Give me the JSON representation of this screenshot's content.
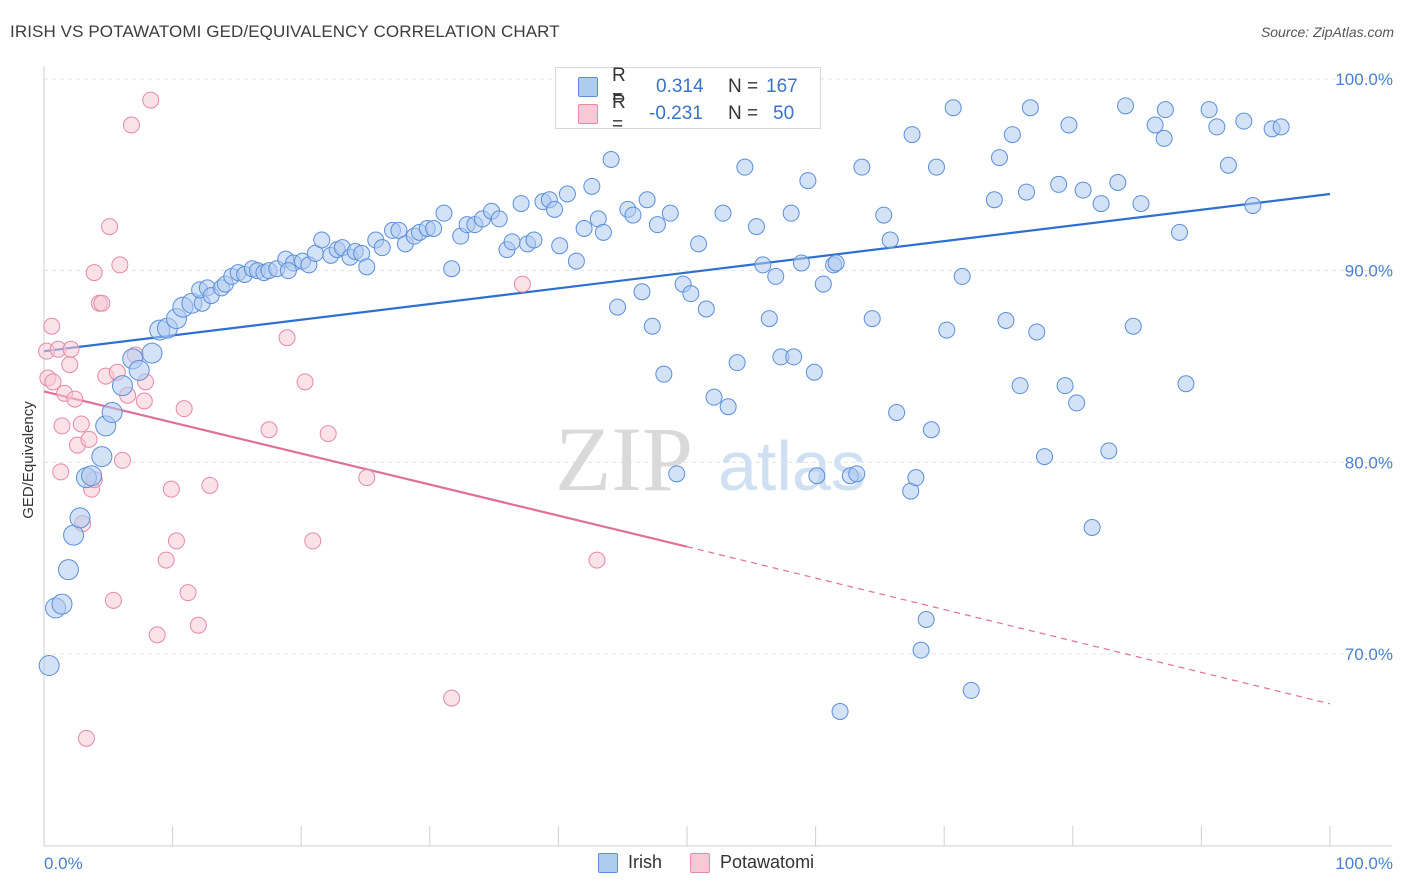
{
  "title": "IRISH VS POTAWATOMI GED/EQUIVALENCY CORRELATION CHART",
  "source": "Source: ZipAtlas.com",
  "watermark": {
    "zip": "ZIP",
    "atlas": "atlas"
  },
  "legend": {
    "rows": [
      {
        "r_label": "R =",
        "r_value": "0.314",
        "n_label": "N =",
        "n_value": "167",
        "fill": "#aecbf0",
        "stroke": "#5b8fd9"
      },
      {
        "r_label": "R =",
        "r_value": "-0.231",
        "n_label": "N =",
        "n_value": "50",
        "fill": "#f8c8d6",
        "stroke": "#e58aa6"
      }
    ]
  },
  "bottom_legend": [
    {
      "name": "Irish",
      "fill": "#aecbf0",
      "stroke": "#5b8fd9"
    },
    {
      "name": "Potawatomi",
      "fill": "#f8c8d6",
      "stroke": "#e58aa6"
    }
  ],
  "chart_data": {
    "type": "scatter",
    "title": "IRISH VS POTAWATOMI GED/EQUIVALENCY CORRELATION CHART",
    "xlabel": "",
    "ylabel": "GED/Equivalency",
    "xlim": [
      0,
      100
    ],
    "ylim": [
      59,
      101
    ],
    "x_tick_labels": [
      "0.0%",
      "100.0%"
    ],
    "y_ticks": [
      70,
      80,
      90,
      100
    ],
    "y_tick_labels": [
      "70.0%",
      "80.0%",
      "90.0%",
      "100.0%"
    ],
    "grid": true,
    "legend_position": "top-center",
    "colors": {
      "irish_fill": "#aecbf0",
      "irish_stroke": "#5b8fd9",
      "irish_line": "#2f6fce",
      "pota_fill": "#f8c8d6",
      "pota_stroke": "#e58aa6",
      "pota_line": "#e0709a",
      "tick_text": "#4a7fd0"
    },
    "series": [
      {
        "name": "Irish",
        "trend": {
          "x": [
            0,
            100
          ],
          "y": [
            85.8,
            94.0
          ],
          "style": "solid"
        },
        "points": [
          [
            0.4,
            69.4
          ],
          [
            0.9,
            72.4
          ],
          [
            1.4,
            72.6
          ],
          [
            1.9,
            74.4
          ],
          [
            2.3,
            76.2
          ],
          [
            2.8,
            77.1
          ],
          [
            3.3,
            79.2
          ],
          [
            3.7,
            79.3
          ],
          [
            4.5,
            80.3
          ],
          [
            4.8,
            81.9
          ],
          [
            5.3,
            82.6
          ],
          [
            6.1,
            84.0
          ],
          [
            6.9,
            85.4
          ],
          [
            7.4,
            84.8
          ],
          [
            8.4,
            85.7
          ],
          [
            9.0,
            86.9
          ],
          [
            9.6,
            87.0
          ],
          [
            10.3,
            87.5
          ],
          [
            10.8,
            88.1
          ],
          [
            11.5,
            88.3
          ],
          [
            12.3,
            88.3
          ],
          [
            12.1,
            89.0
          ],
          [
            12.7,
            89.1
          ],
          [
            13.0,
            88.7
          ],
          [
            13.8,
            89.1
          ],
          [
            14.1,
            89.3
          ],
          [
            14.6,
            89.7
          ],
          [
            15.1,
            89.9
          ],
          [
            15.6,
            89.8
          ],
          [
            16.2,
            90.1
          ],
          [
            16.6,
            90.0
          ],
          [
            17.1,
            89.9
          ],
          [
            17.5,
            90.0
          ],
          [
            18.1,
            90.1
          ],
          [
            18.8,
            90.6
          ],
          [
            19.4,
            90.4
          ],
          [
            19.0,
            90.0
          ],
          [
            20.1,
            90.5
          ],
          [
            20.6,
            90.3
          ],
          [
            21.1,
            90.9
          ],
          [
            21.6,
            91.6
          ],
          [
            22.3,
            90.8
          ],
          [
            22.8,
            91.1
          ],
          [
            23.2,
            91.2
          ],
          [
            23.8,
            90.7
          ],
          [
            24.2,
            91.0
          ],
          [
            24.7,
            90.9
          ],
          [
            25.1,
            90.2
          ],
          [
            25.8,
            91.6
          ],
          [
            26.3,
            91.2
          ],
          [
            27.1,
            92.1
          ],
          [
            27.6,
            92.1
          ],
          [
            28.1,
            91.4
          ],
          [
            28.8,
            91.8
          ],
          [
            29.2,
            92.0
          ],
          [
            29.8,
            92.2
          ],
          [
            30.3,
            92.2
          ],
          [
            31.1,
            93.0
          ],
          [
            31.7,
            90.1
          ],
          [
            32.4,
            91.8
          ],
          [
            32.9,
            92.4
          ],
          [
            33.5,
            92.4
          ],
          [
            34.1,
            92.7
          ],
          [
            34.8,
            93.1
          ],
          [
            35.4,
            92.7
          ],
          [
            36.0,
            91.1
          ],
          [
            36.4,
            91.5
          ],
          [
            37.1,
            93.5
          ],
          [
            37.6,
            91.4
          ],
          [
            38.1,
            91.6
          ],
          [
            38.8,
            93.6
          ],
          [
            39.3,
            93.7
          ],
          [
            39.7,
            93.2
          ],
          [
            40.1,
            91.3
          ],
          [
            40.7,
            94.0
          ],
          [
            41.4,
            90.5
          ],
          [
            42.0,
            92.2
          ],
          [
            42.6,
            94.4
          ],
          [
            43.1,
            92.7
          ],
          [
            43.5,
            92.0
          ],
          [
            44.1,
            95.8
          ],
          [
            44.6,
            88.1
          ],
          [
            45.4,
            93.2
          ],
          [
            45.8,
            92.9
          ],
          [
            46.5,
            88.9
          ],
          [
            46.9,
            93.7
          ],
          [
            47.3,
            87.1
          ],
          [
            47.7,
            92.4
          ],
          [
            48.2,
            84.6
          ],
          [
            48.7,
            93.0
          ],
          [
            49.2,
            79.4
          ],
          [
            49.7,
            89.3
          ],
          [
            50.3,
            88.8
          ],
          [
            50.9,
            91.4
          ],
          [
            51.5,
            88.0
          ],
          [
            52.1,
            83.4
          ],
          [
            52.8,
            93.0
          ],
          [
            53.2,
            82.9
          ],
          [
            53.9,
            85.2
          ],
          [
            54.5,
            95.4
          ],
          [
            55.4,
            92.3
          ],
          [
            55.9,
            90.3
          ],
          [
            56.4,
            87.5
          ],
          [
            56.9,
            89.7
          ],
          [
            57.3,
            85.5
          ],
          [
            58.1,
            93.0
          ],
          [
            58.3,
            85.5
          ],
          [
            58.9,
            90.4
          ],
          [
            59.4,
            94.7
          ],
          [
            59.9,
            84.7
          ],
          [
            60.6,
            89.3
          ],
          [
            60.1,
            79.3
          ],
          [
            61.4,
            90.3
          ],
          [
            61.6,
            90.4
          ],
          [
            61.9,
            67.0
          ],
          [
            62.7,
            79.3
          ],
          [
            63.2,
            79.4
          ],
          [
            63.6,
            95.4
          ],
          [
            64.4,
            87.5
          ],
          [
            65.3,
            92.9
          ],
          [
            65.8,
            91.6
          ],
          [
            66.3,
            82.6
          ],
          [
            67.4,
            78.5
          ],
          [
            67.5,
            97.1
          ],
          [
            67.8,
            79.2
          ],
          [
            68.6,
            71.8
          ],
          [
            68.2,
            70.2
          ],
          [
            69.0,
            81.7
          ],
          [
            69.4,
            95.4
          ],
          [
            70.2,
            86.9
          ],
          [
            70.7,
            98.5
          ],
          [
            71.4,
            89.7
          ],
          [
            72.1,
            68.1
          ],
          [
            73.9,
            93.7
          ],
          [
            74.3,
            95.9
          ],
          [
            74.8,
            87.4
          ],
          [
            75.3,
            97.1
          ],
          [
            75.9,
            84.0
          ],
          [
            76.4,
            94.1
          ],
          [
            76.7,
            98.5
          ],
          [
            77.2,
            86.8
          ],
          [
            77.8,
            80.3
          ],
          [
            78.9,
            94.5
          ],
          [
            79.4,
            84.0
          ],
          [
            79.7,
            97.6
          ],
          [
            80.3,
            83.1
          ],
          [
            80.8,
            94.2
          ],
          [
            81.5,
            76.6
          ],
          [
            82.2,
            93.5
          ],
          [
            82.8,
            80.6
          ],
          [
            83.5,
            94.6
          ],
          [
            84.1,
            98.6
          ],
          [
            84.7,
            87.1
          ],
          [
            85.3,
            93.5
          ],
          [
            86.4,
            97.6
          ],
          [
            87.1,
            96.9
          ],
          [
            87.2,
            98.4
          ],
          [
            88.3,
            92.0
          ],
          [
            88.8,
            84.1
          ],
          [
            90.6,
            98.4
          ],
          [
            91.2,
            97.5
          ],
          [
            92.1,
            95.5
          ],
          [
            93.3,
            97.8
          ],
          [
            94.0,
            93.4
          ],
          [
            95.5,
            97.4
          ],
          [
            96.2,
            97.5
          ]
        ]
      },
      {
        "name": "Potawatomi",
        "trend": {
          "x": [
            0,
            50,
            100
          ],
          "y": [
            83.7,
            75.6,
            67.4
          ],
          "style": "solid-then-dashed"
        },
        "points": [
          [
            0.2,
            85.8
          ],
          [
            0.3,
            84.4
          ],
          [
            0.6,
            87.1
          ],
          [
            0.7,
            84.2
          ],
          [
            1.1,
            85.9
          ],
          [
            1.3,
            79.5
          ],
          [
            1.4,
            81.9
          ],
          [
            1.6,
            83.6
          ],
          [
            2.0,
            85.1
          ],
          [
            2.1,
            85.9
          ],
          [
            2.4,
            83.3
          ],
          [
            2.6,
            80.9
          ],
          [
            2.9,
            82.0
          ],
          [
            3.0,
            76.8
          ],
          [
            3.3,
            65.6
          ],
          [
            3.5,
            81.2
          ],
          [
            3.7,
            78.6
          ],
          [
            3.9,
            79.1
          ],
          [
            3.9,
            89.9
          ],
          [
            4.3,
            88.3
          ],
          [
            4.5,
            88.3
          ],
          [
            4.8,
            84.5
          ],
          [
            5.1,
            92.3
          ],
          [
            5.4,
            72.8
          ],
          [
            5.7,
            84.7
          ],
          [
            5.9,
            90.3
          ],
          [
            6.1,
            80.1
          ],
          [
            6.5,
            83.5
          ],
          [
            6.8,
            97.6
          ],
          [
            7.1,
            85.6
          ],
          [
            7.8,
            83.2
          ],
          [
            7.9,
            84.2
          ],
          [
            8.3,
            98.9
          ],
          [
            8.8,
            71.0
          ],
          [
            9.5,
            74.9
          ],
          [
            9.9,
            78.6
          ],
          [
            10.3,
            75.9
          ],
          [
            10.9,
            82.8
          ],
          [
            11.2,
            73.2
          ],
          [
            12.0,
            71.5
          ],
          [
            12.9,
            78.8
          ],
          [
            17.5,
            81.7
          ],
          [
            18.9,
            86.5
          ],
          [
            20.3,
            84.2
          ],
          [
            20.9,
            75.9
          ],
          [
            22.1,
            81.5
          ],
          [
            25.1,
            79.2
          ],
          [
            31.7,
            67.7
          ],
          [
            37.2,
            89.3
          ],
          [
            43.0,
            74.9
          ]
        ]
      }
    ]
  }
}
